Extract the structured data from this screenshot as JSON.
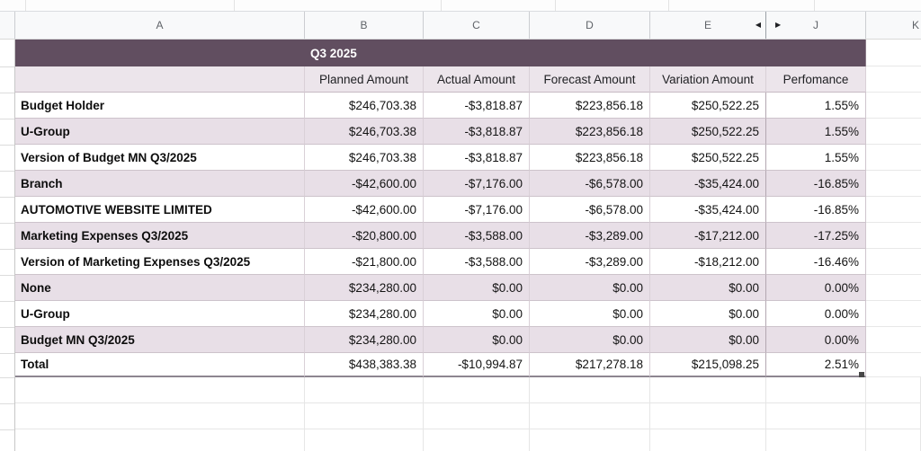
{
  "app": {
    "type": "spreadsheet-grid"
  },
  "column_headers": {
    "letters": [
      "A",
      "B",
      "C",
      "D",
      "E",
      "J",
      "K"
    ],
    "collapse_left_icon": "◀",
    "expand_right_icon": "▶"
  },
  "table": {
    "band_title": "Q3 2025",
    "value_headers": [
      "Planned Amount",
      "Actual Amount",
      "Forecast Amount",
      "Variation Amount",
      "Perfomance"
    ],
    "rows": [
      {
        "label": "Budget Holder",
        "values": [
          "$246,703.38",
          "-$3,818.87",
          "$223,856.18",
          "$250,522.25",
          "1.55%"
        ]
      },
      {
        "label": "U-Group",
        "values": [
          "$246,703.38",
          "-$3,818.87",
          "$223,856.18",
          "$250,522.25",
          "1.55%"
        ]
      },
      {
        "label": "Version of Budget MN Q3/2025",
        "values": [
          "$246,703.38",
          "-$3,818.87",
          "$223,856.18",
          "$250,522.25",
          "1.55%"
        ]
      },
      {
        "label": "Branch",
        "values": [
          "-$42,600.00",
          "-$7,176.00",
          "-$6,578.00",
          "-$35,424.00",
          "-16.85%"
        ]
      },
      {
        "label": "AUTOMOTIVE WEBSITE LIMITED",
        "values": [
          "-$42,600.00",
          "-$7,176.00",
          "-$6,578.00",
          "-$35,424.00",
          "-16.85%"
        ]
      },
      {
        "label": "Marketing Expenses Q3/2025",
        "values": [
          "-$20,800.00",
          "-$3,588.00",
          "-$3,289.00",
          "-$17,212.00",
          "-17.25%"
        ]
      },
      {
        "label": "Version of Marketing Expenses Q3/2025",
        "values": [
          "-$21,800.00",
          "-$3,588.00",
          "-$3,289.00",
          "-$18,212.00",
          "-16.46%"
        ]
      },
      {
        "label": "None",
        "values": [
          "$234,280.00",
          "$0.00",
          "$0.00",
          "$0.00",
          "0.00%"
        ]
      },
      {
        "label": "U-Group",
        "values": [
          "$234,280.00",
          "$0.00",
          "$0.00",
          "$0.00",
          "0.00%"
        ]
      },
      {
        "label": "Budget MN Q3/2025",
        "values": [
          "$234,280.00",
          "$0.00",
          "$0.00",
          "$0.00",
          "0.00%"
        ]
      },
      {
        "label": "Total",
        "values": [
          "$438,383.38",
          "-$10,994.87",
          "$217,278.18",
          "$215,098.25",
          "2.51%"
        ],
        "is_total": true
      }
    ]
  },
  "colors": {
    "band_bg": "#614e60",
    "header_row_bg": "#ece5eb",
    "alt_row_bg": "#e8dfe7",
    "column_header_bg": "#f8f9fa"
  }
}
